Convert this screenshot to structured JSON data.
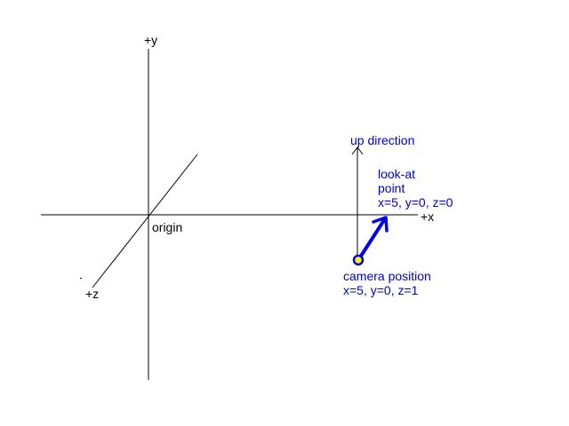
{
  "axes": {
    "x_label": "+x",
    "y_label": "+y",
    "z_label": "+z",
    "origin_label": "origin"
  },
  "up_direction": {
    "label": "up direction"
  },
  "look_at": {
    "line1": "look-at",
    "line2": "point",
    "coords": "x=5, y=0, z=0"
  },
  "camera": {
    "line1": "camera position",
    "coords": "x=5, y=0, z=1"
  },
  "colors": {
    "axis": "#000000",
    "annotation": "#0000cc",
    "arrow": "#0000ee",
    "camera_fill": "#ffee00",
    "background": "#ffffff"
  }
}
